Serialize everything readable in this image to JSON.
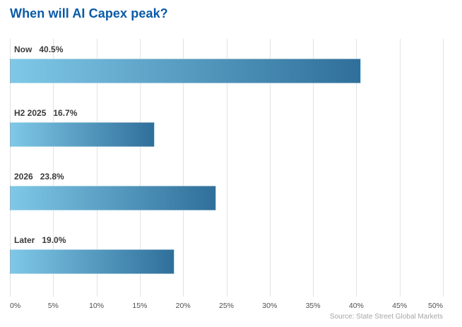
{
  "title": "When will AI Capex peak?",
  "source": "Source: State Street Global Markets",
  "colors": {
    "title": "#0a5aa6",
    "bar_gradient_start": "#7fc8e7",
    "bar_gradient_end": "#2f6f9a",
    "gridline": "#e2e2e2",
    "label_text": "#3a3a3a",
    "axis_text": "#4f4f4f",
    "source_text": "#a6a6a6"
  },
  "chart_data": {
    "type": "bar",
    "orientation": "horizontal",
    "title": "When will AI Capex peak?",
    "categories": [
      "Now",
      "H2 2025",
      "2026",
      "Later"
    ],
    "values": [
      40.5,
      16.7,
      23.8,
      19.0
    ],
    "value_labels": [
      "40.5%",
      "16.7%",
      "23.8%",
      "19.0%"
    ],
    "xlabel": "",
    "ylabel": "",
    "xlim": [
      0,
      50
    ],
    "x_ticks": [
      0,
      5,
      10,
      15,
      20,
      25,
      30,
      35,
      40,
      45,
      50
    ],
    "x_tick_labels": [
      "0%",
      "5%",
      "10%",
      "15%",
      "20%",
      "25%",
      "30%",
      "35%",
      "40%",
      "45%",
      "50%"
    ],
    "grid": true,
    "gridline_orientation": "vertical",
    "legend": false,
    "annotation": "Source: State Street Global Markets"
  }
}
